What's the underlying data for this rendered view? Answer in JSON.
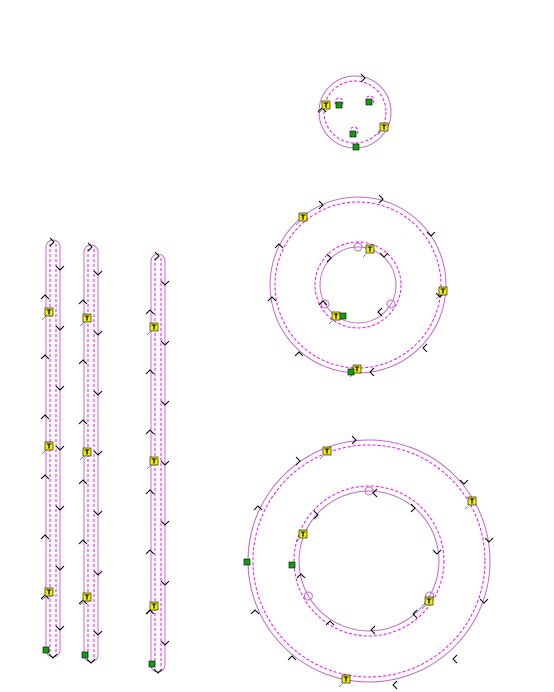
{
  "tab_marker": {
    "label": "T",
    "fill": "#f0f000"
  },
  "colors": {
    "part_outline": "#c068c8",
    "toolpath": "#ff00ff",
    "direction_arrow": "#000000",
    "lead_in_marker": "#10a010"
  },
  "icons": [
    "tab-marker-icon",
    "lead-in-marker-icon",
    "direction-arrow-icon"
  ]
}
